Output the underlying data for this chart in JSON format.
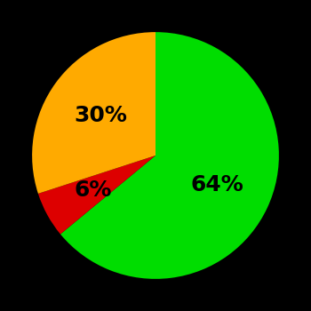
{
  "slices": [
    64,
    6,
    30
  ],
  "labels": [
    "64%",
    "6%",
    "30%"
  ],
  "colors": [
    "#00dd00",
    "#dd0000",
    "#ffaa00"
  ],
  "background_color": "#000000",
  "text_color": "#000000",
  "font_size": 18,
  "font_weight": "bold",
  "startangle": 90,
  "label_r": [
    0.55,
    0.58,
    0.55
  ],
  "figsize": [
    3.5,
    3.5
  ],
  "dpi": 100
}
